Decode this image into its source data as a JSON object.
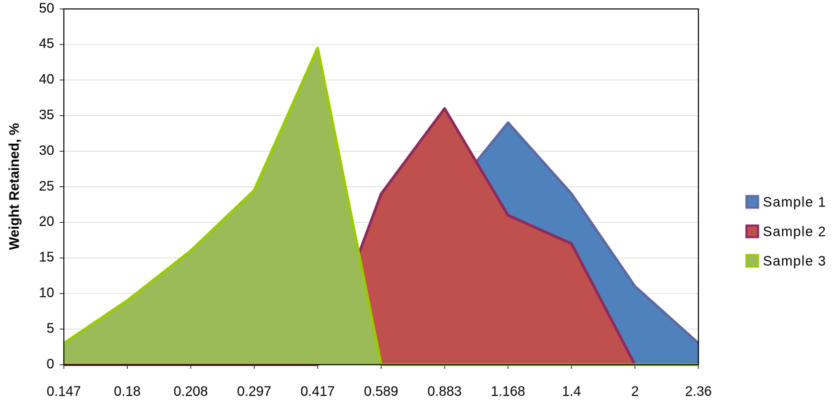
{
  "chart_data": {
    "type": "area",
    "y_label": "Weight Retained, %",
    "categories": [
      "0.147",
      "0.18",
      "0.208",
      "0.297",
      "0.417",
      "0.589",
      "0.883",
      "1.168",
      "1.4",
      "2",
      "2.36"
    ],
    "series": [
      {
        "name": "Sample 1",
        "color": "#4f81bd",
        "edge": "#5b6aa3",
        "values": [
          0,
          0,
          0,
          0,
          0,
          5,
          23,
          34,
          24,
          11,
          3
        ]
      },
      {
        "name": "Sample 2",
        "color": "#c0504d",
        "edge": "#8e2a5c",
        "values": [
          0,
          0,
          0,
          0,
          0,
          24,
          36,
          21,
          17,
          0,
          0
        ]
      },
      {
        "name": "Sample 3",
        "color": "#9bbb59",
        "edge": "#99cc00",
        "values": [
          3,
          9,
          16,
          24.5,
          44.5,
          0,
          0,
          0,
          0,
          0,
          0
        ]
      }
    ],
    "ylim": [
      0,
      50
    ],
    "yticks": [
      0,
      5,
      10,
      15,
      20,
      25,
      30,
      35,
      40,
      45,
      50
    ],
    "grid": true,
    "legend": "right"
  }
}
